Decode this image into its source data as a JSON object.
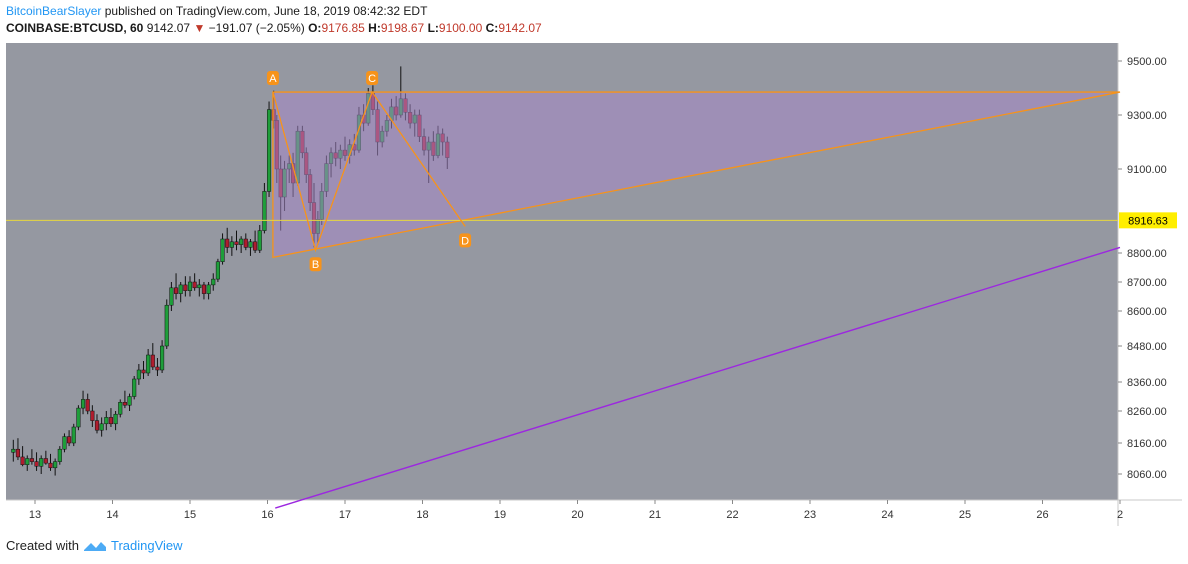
{
  "header": {
    "author": "BitcoinBearSlayer",
    "published_text": "published on TradingView.com, June 18, 2019 08:42:32 EDT",
    "symbol": "COINBASE:BTCUSD, 60",
    "last_price": "9142.07",
    "change": "−191.07 (−2.05%)",
    "o_label": "O:",
    "o_value": "9176.85",
    "h_label": "H:",
    "h_value": "9198.67",
    "l_label": "L:",
    "l_value": "9100.00",
    "c_label": "C:",
    "c_value": "9142.07"
  },
  "footer": {
    "created_text": "Created with",
    "brand": "TradingView"
  },
  "colors": {
    "background": "#9598a1",
    "up": "#1e9e3a",
    "down": "#b01c2e",
    "pattern": "#f7931a",
    "fill": "#a688c9",
    "purple_line": "#9c27e0",
    "price_line": "#e6d640",
    "price_tag": "#ffee00"
  },
  "chart_data": {
    "type": "candlestick",
    "symbol": "COINBASE:BTCUSD",
    "interval": "60",
    "x_ticks": [
      "13",
      "14",
      "15",
      "16",
      "17",
      "18",
      "19",
      "20",
      "21",
      "22",
      "23",
      "24",
      "25",
      "26",
      "2"
    ],
    "y_ticks": [
      "8060.00",
      "8160.00",
      "8260.00",
      "8360.00",
      "8480.00",
      "8600.00",
      "8700.00",
      "8800.00",
      "9100.00",
      "9300.00",
      "9500.00"
    ],
    "current_price_label": "8916.63",
    "pattern_points": [
      {
        "label": "A",
        "day": 16.07,
        "price": 9385
      },
      {
        "label": "B",
        "day": 16.62,
        "price": 8810
      },
      {
        "label": "C",
        "day": 17.35,
        "price": 9385
      },
      {
        "label": "D",
        "day": 18.55,
        "price": 8895
      }
    ],
    "triangle": {
      "top_price": 9385,
      "bottom_start_price": 8785,
      "apex_day": 27.0,
      "apex_price": 9385,
      "start_day": 16.07
    },
    "channel_line": {
      "start_day": 16.1,
      "start_price": 7950,
      "end_day": 27.0,
      "end_price": 8820
    },
    "candles": [
      [
        12.72,
        8130,
        8170,
        8100,
        8140
      ],
      [
        12.78,
        8140,
        8175,
        8105,
        8115
      ],
      [
        12.84,
        8115,
        8150,
        8085,
        8090
      ],
      [
        12.9,
        8090,
        8120,
        8070,
        8110
      ],
      [
        12.96,
        8110,
        8140,
        8090,
        8100
      ],
      [
        13.02,
        8100,
        8130,
        8070,
        8085
      ],
      [
        13.08,
        8085,
        8120,
        8060,
        8110
      ],
      [
        13.14,
        8110,
        8135,
        8090,
        8095
      ],
      [
        13.2,
        8095,
        8125,
        8070,
        8080
      ],
      [
        13.26,
        8080,
        8110,
        8055,
        8100
      ],
      [
        13.32,
        8100,
        8150,
        8090,
        8140
      ],
      [
        13.38,
        8140,
        8190,
        8130,
        8180
      ],
      [
        13.44,
        8180,
        8200,
        8150,
        8160
      ],
      [
        13.5,
        8160,
        8220,
        8150,
        8210
      ],
      [
        13.56,
        8210,
        8280,
        8200,
        8270
      ],
      [
        13.62,
        8270,
        8330,
        8250,
        8300
      ],
      [
        13.68,
        8300,
        8320,
        8250,
        8260
      ],
      [
        13.74,
        8260,
        8280,
        8210,
        8230
      ],
      [
        13.8,
        8230,
        8250,
        8190,
        8200
      ],
      [
        13.86,
        8200,
        8240,
        8180,
        8220
      ],
      [
        13.92,
        8220,
        8260,
        8200,
        8240
      ],
      [
        13.98,
        8240,
        8270,
        8210,
        8220
      ],
      [
        14.04,
        8220,
        8260,
        8200,
        8250
      ],
      [
        14.1,
        8250,
        8300,
        8240,
        8290
      ],
      [
        14.16,
        8290,
        8330,
        8270,
        8280
      ],
      [
        14.22,
        8280,
        8320,
        8260,
        8310
      ],
      [
        14.28,
        8310,
        8380,
        8300,
        8370
      ],
      [
        14.34,
        8370,
        8420,
        8350,
        8400
      ],
      [
        14.4,
        8400,
        8430,
        8370,
        8390
      ],
      [
        14.46,
        8390,
        8470,
        8380,
        8450
      ],
      [
        14.52,
        8450,
        8490,
        8400,
        8410
      ],
      [
        14.58,
        8410,
        8440,
        8380,
        8400
      ],
      [
        14.64,
        8400,
        8500,
        8390,
        8480
      ],
      [
        14.7,
        8480,
        8640,
        8470,
        8620
      ],
      [
        14.76,
        8620,
        8700,
        8600,
        8680
      ],
      [
        14.82,
        8680,
        8730,
        8640,
        8660
      ],
      [
        14.88,
        8660,
        8700,
        8630,
        8690
      ],
      [
        14.94,
        8690,
        8720,
        8650,
        8670
      ],
      [
        15.0,
        8670,
        8720,
        8650,
        8700
      ],
      [
        15.06,
        8700,
        8730,
        8670,
        8680
      ],
      [
        15.12,
        8680,
        8710,
        8650,
        8690
      ],
      [
        15.18,
        8690,
        8700,
        8640,
        8660
      ],
      [
        15.24,
        8660,
        8700,
        8640,
        8690
      ],
      [
        15.3,
        8690,
        8730,
        8670,
        8710
      ],
      [
        15.36,
        8710,
        8780,
        8700,
        8770
      ],
      [
        15.42,
        8770,
        8870,
        8760,
        8850
      ],
      [
        15.48,
        8850,
        8890,
        8800,
        8820
      ],
      [
        15.54,
        8820,
        8860,
        8790,
        8840
      ],
      [
        15.6,
        8840,
        8880,
        8810,
        8830
      ],
      [
        15.66,
        8830,
        8860,
        8800,
        8850
      ],
      [
        15.72,
        8850,
        8870,
        8810,
        8820
      ],
      [
        15.78,
        8820,
        8850,
        8790,
        8840
      ],
      [
        15.84,
        8840,
        8880,
        8800,
        8810
      ],
      [
        15.9,
        8810,
        8900,
        8800,
        8880
      ],
      [
        15.96,
        8880,
        9050,
        8870,
        9020
      ],
      [
        16.02,
        9020,
        9350,
        9000,
        9320
      ],
      [
        16.08,
        9320,
        9390,
        9250,
        9280
      ],
      [
        16.12,
        9280,
        9300,
        9050,
        9100
      ],
      [
        16.17,
        9100,
        9150,
        8880,
        9000
      ],
      [
        16.22,
        9000,
        9130,
        8950,
        9100
      ],
      [
        16.28,
        9100,
        9150,
        9050,
        9120
      ],
      [
        16.33,
        9120,
        9160,
        9000,
        9050
      ],
      [
        16.39,
        9050,
        9260,
        9040,
        9240
      ],
      [
        16.45,
        9240,
        9260,
        9140,
        9160
      ],
      [
        16.5,
        9160,
        9180,
        9050,
        9080
      ],
      [
        16.55,
        9080,
        9100,
        8950,
        8980
      ],
      [
        16.6,
        8980,
        9050,
        8820,
        8870
      ],
      [
        16.65,
        8870,
        8950,
        8830,
        8920
      ],
      [
        16.7,
        8920,
        9050,
        8900,
        9020
      ],
      [
        16.76,
        9020,
        9150,
        9000,
        9120
      ],
      [
        16.82,
        9120,
        9180,
        9070,
        9160
      ],
      [
        16.88,
        9160,
        9200,
        9110,
        9140
      ],
      [
        16.94,
        9140,
        9190,
        9100,
        9170
      ],
      [
        17.0,
        9170,
        9220,
        9130,
        9150
      ],
      [
        17.06,
        9150,
        9210,
        9120,
        9190
      ],
      [
        17.12,
        9190,
        9230,
        9150,
        9170
      ],
      [
        17.18,
        9170,
        9330,
        9160,
        9300
      ],
      [
        17.24,
        9300,
        9340,
        9240,
        9270
      ],
      [
        17.3,
        9270,
        9400,
        9260,
        9380
      ],
      [
        17.36,
        9380,
        9410,
        9300,
        9320
      ],
      [
        17.42,
        9320,
        9350,
        9150,
        9200
      ],
      [
        17.48,
        9200,
        9260,
        9180,
        9240
      ],
      [
        17.54,
        9240,
        9300,
        9220,
        9280
      ],
      [
        17.6,
        9280,
        9360,
        9250,
        9330
      ],
      [
        17.66,
        9330,
        9370,
        9280,
        9300
      ],
      [
        17.72,
        9300,
        9480,
        9290,
        9360
      ],
      [
        17.78,
        9360,
        9380,
        9280,
        9310
      ],
      [
        17.84,
        9310,
        9340,
        9250,
        9270
      ],
      [
        17.9,
        9270,
        9320,
        9220,
        9300
      ],
      [
        17.96,
        9300,
        9320,
        9200,
        9220
      ],
      [
        18.02,
        9220,
        9250,
        9150,
        9170
      ],
      [
        18.08,
        9170,
        9220,
        9050,
        9200
      ],
      [
        18.14,
        9200,
        9240,
        9130,
        9150
      ],
      [
        18.2,
        9150,
        9260,
        9140,
        9230
      ],
      [
        18.26,
        9230,
        9250,
        9150,
        9200
      ],
      [
        18.32,
        9200,
        9220,
        9100,
        9142
      ]
    ]
  }
}
